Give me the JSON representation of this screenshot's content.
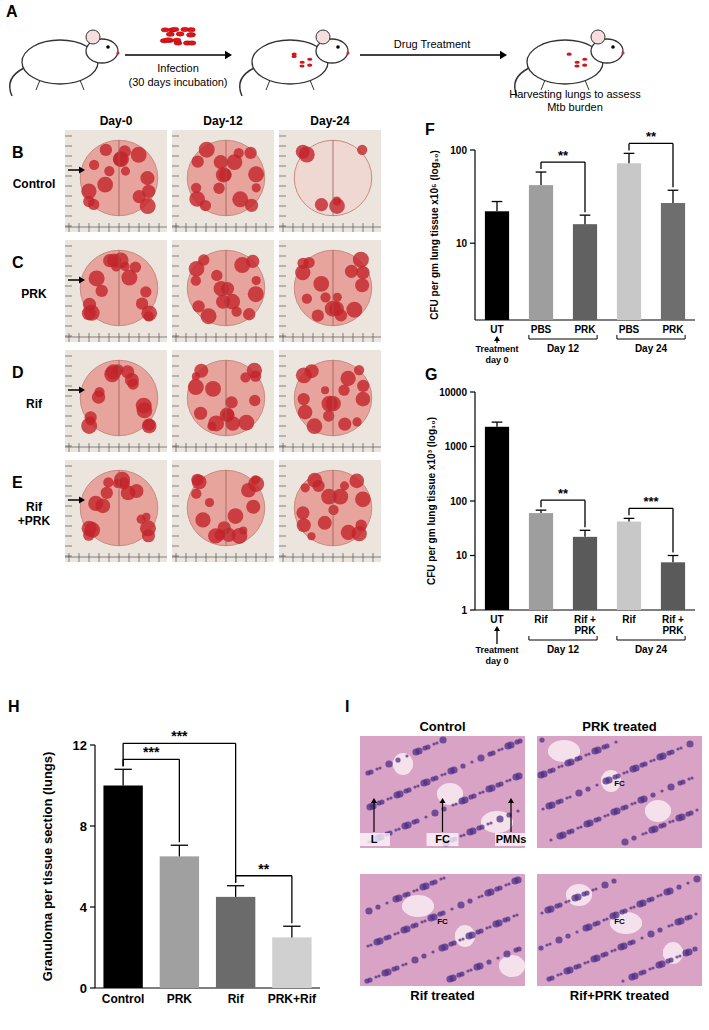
{
  "panels": {
    "letters": [
      "A",
      "B",
      "C",
      "D",
      "E",
      "F",
      "G",
      "H",
      "I"
    ],
    "schematic": {
      "infection": "Infection",
      "incubation": "(30 days incubation)",
      "treatment": "Drug Treatment",
      "harvest": "Harvesting lungs to assess Mtb burden"
    },
    "lungs": {
      "columns": [
        "Day-0",
        "Day-12",
        "Day-24"
      ],
      "rows": [
        "Control",
        "PRK",
        "Rif",
        "Rif +PRK"
      ]
    },
    "histology": {
      "images": [
        {
          "title": "Control",
          "labels": [
            "L",
            "FC",
            "PMNs"
          ]
        },
        {
          "title": "PRK treated",
          "labels": [
            "FC"
          ]
        },
        {
          "title": "Rif treated",
          "labels": [
            "FC"
          ]
        },
        {
          "title": "Rif+PRK treated",
          "labels": [
            "FC"
          ]
        }
      ]
    }
  },
  "chart_data": [
    {
      "type": "bar",
      "y_label": "CFU per gm lung tissue x10⁵ (log₁₀)",
      "categories": [
        "UT",
        "PBS",
        "PRK",
        "PBS",
        "PRK"
      ],
      "values": [
        22,
        42,
        16,
        72,
        27
      ],
      "errors": [
        6,
        16,
        4,
        20,
        10
      ],
      "colors": [
        "#000000",
        "#9e9e9e",
        "#616161",
        "#c8c8c8",
        "#6e6e6e"
      ],
      "log": "y",
      "ylim": [
        1.5,
        100
      ],
      "yticks": [
        10,
        100
      ],
      "groups": [
        {
          "label": "Day 12",
          "start": 1,
          "end": 2
        },
        {
          "label": "Day 24",
          "start": 3,
          "end": 4
        }
      ],
      "x_annotation": {
        "text": "Treatment day 0",
        "index": 0
      },
      "annotations": [
        {
          "text": "**",
          "from": 1,
          "to": 2
        },
        {
          "text": "**",
          "from": 3,
          "to": 4
        }
      ]
    },
    {
      "type": "bar",
      "y_label": "CFU per gm lung tissue x10³ (log₁₀)",
      "categories": [
        "UT",
        "Rif",
        "Rif + PRK",
        "Rif",
        "Rif + PRK"
      ],
      "values": [
        2300,
        60,
        22,
        42,
        7.5
      ],
      "errors": [
        500,
        8,
        7,
        6,
        2.5
      ],
      "colors": [
        "#000000",
        "#9e9e9e",
        "#5a5a5a",
        "#c8c8c8",
        "#5a5a5a"
      ],
      "log": "y",
      "ylim": [
        1,
        10000
      ],
      "yticks": [
        1,
        10,
        100,
        1000,
        10000
      ],
      "groups": [
        {
          "label": "Day 12",
          "start": 1,
          "end": 2
        },
        {
          "label": "Day 24",
          "start": 3,
          "end": 4
        }
      ],
      "x_annotation": {
        "text": "Treatment day 0",
        "index": 0
      },
      "annotations": [
        {
          "text": "**",
          "from": 1,
          "to": 2
        },
        {
          "text": "***",
          "from": 3,
          "to": 4
        }
      ]
    },
    {
      "type": "bar",
      "y_label": "Granuloma per tissue section (lungs)",
      "categories": [
        "Control",
        "PRK",
        "Rif",
        "PRK+Rif"
      ],
      "values": [
        10,
        6.5,
        4.5,
        2.5
      ],
      "errors": [
        0.8,
        0.55,
        0.55,
        0.55
      ],
      "colors": [
        "#000000",
        "#a0a0a0",
        "#6b6b6b",
        "#d0d0d0"
      ],
      "ylim": [
        0,
        12
      ],
      "yticks": [
        0,
        4,
        8,
        12
      ],
      "annotations": [
        {
          "text": "***",
          "from": 0,
          "to": 1
        },
        {
          "text": "***",
          "from": 0,
          "to": 2
        },
        {
          "text": "**",
          "from": 2,
          "to": 3
        }
      ]
    }
  ]
}
